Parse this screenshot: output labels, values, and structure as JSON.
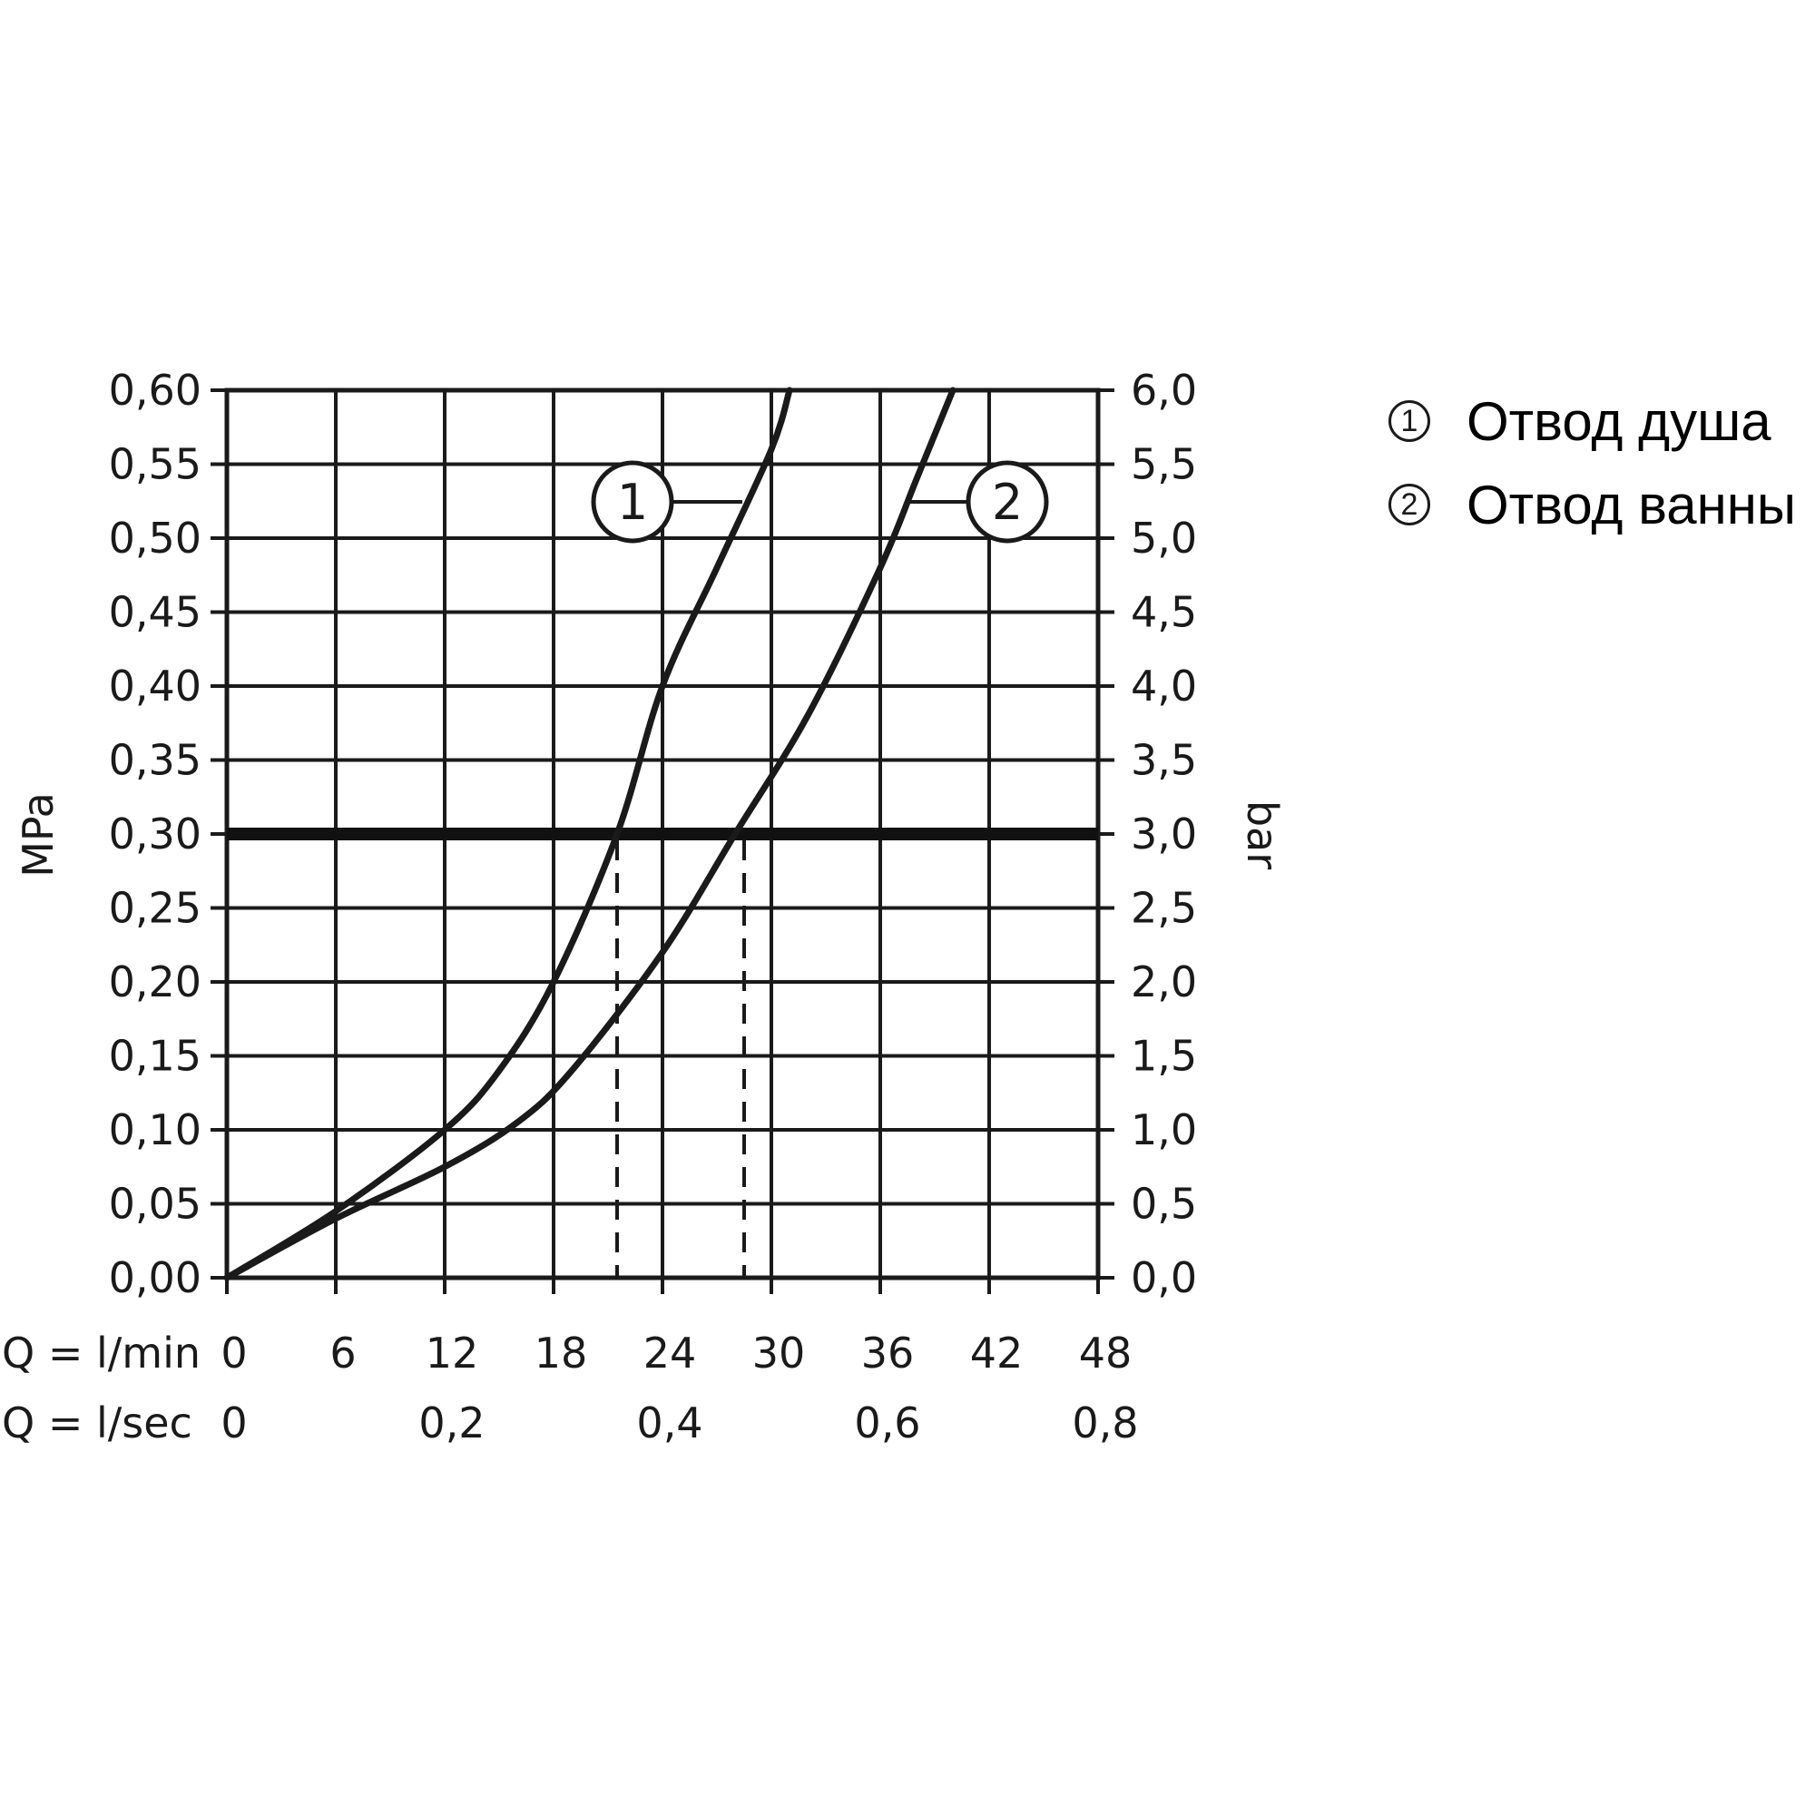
{
  "chart_data": {
    "type": "line",
    "y_left": {
      "label": "MPa",
      "ticks": [
        "0,00",
        "0,05",
        "0,10",
        "0,15",
        "0,20",
        "0,25",
        "0,30",
        "0,35",
        "0,40",
        "0,45",
        "0,50",
        "0,55",
        "0,60"
      ],
      "range": [
        0,
        0.6
      ]
    },
    "y_right": {
      "label": "bar",
      "ticks": [
        "0,0",
        "0,5",
        "1,0",
        "1,5",
        "2,0",
        "2,5",
        "3,0",
        "3,5",
        "4,0",
        "4,5",
        "5,0",
        "5,5",
        "6,0"
      ]
    },
    "x_lmin": {
      "label": "Q = l/min",
      "ticks": [
        "0",
        "6",
        "12",
        "18",
        "24",
        "30",
        "36",
        "42",
        "48"
      ],
      "range": [
        0,
        48
      ]
    },
    "x_lsec": {
      "label": "Q = l/sec",
      "ticks": [
        {
          "label": "0",
          "lmin": 0
        },
        {
          "label": "0,2",
          "lmin": 12
        },
        {
          "label": "0,4",
          "lmin": 24
        },
        {
          "label": "0,6",
          "lmin": 36
        },
        {
          "label": "0,8",
          "lmin": 48
        }
      ]
    },
    "grid": true,
    "reference_line": {
      "y": 0.3
    },
    "series": [
      {
        "marker": "1",
        "x": [
          0,
          6,
          12,
          15,
          18,
          21.5,
          24,
          27,
          30,
          31
        ],
        "y": [
          0,
          0.045,
          0.1,
          0.14,
          0.2,
          0.3,
          0.4,
          0.48,
          0.56,
          0.6
        ],
        "drop_at_x": 21.5
      },
      {
        "marker": "2",
        "x": [
          0,
          6,
          12,
          16,
          19,
          24,
          28,
          32,
          36,
          38,
          40
        ],
        "y": [
          0,
          0.04,
          0.075,
          0.105,
          0.14,
          0.22,
          0.3,
          0.38,
          0.48,
          0.54,
          0.6
        ],
        "drop_at_x": 28.5
      }
    ]
  },
  "legend": [
    {
      "symbol": "1",
      "text": "Отвод душа"
    },
    {
      "symbol": "2",
      "text": "Отвод ванны"
    }
  ]
}
